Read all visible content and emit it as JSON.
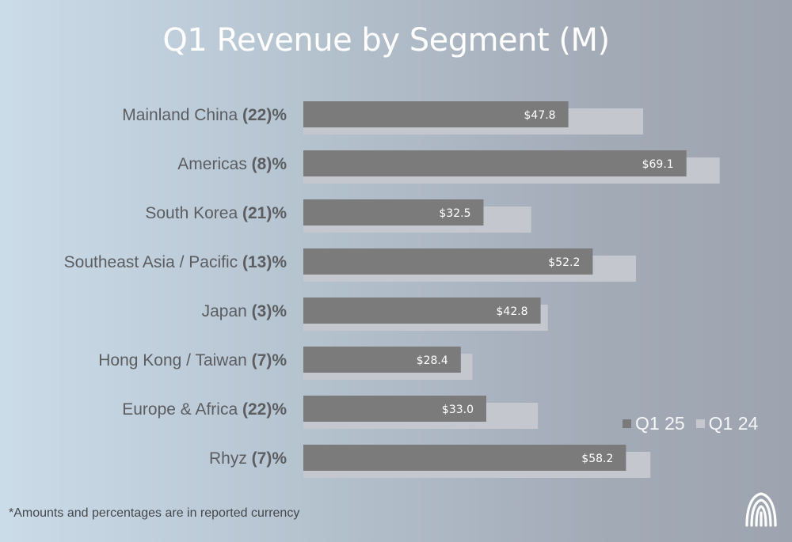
{
  "chart_data": {
    "type": "bar",
    "orientation": "horizontal",
    "title": "Q1 Revenue by Segment (M)",
    "categories": [
      {
        "name": "Mainland China",
        "change": "(22)%"
      },
      {
        "name": "Americas",
        "change": "(8)%"
      },
      {
        "name": "South Korea",
        "change": "(21)%"
      },
      {
        "name": "Southeast Asia / Pacific ",
        "change": "(13)%"
      },
      {
        "name": "Japan",
        "change": "(3)%"
      },
      {
        "name": "Hong Kong / Taiwan",
        "change": "(7)%"
      },
      {
        "name": "Europe & Africa",
        "change": "(22)%"
      },
      {
        "name": "Rhyz",
        "change": "(7)%"
      }
    ],
    "series": [
      {
        "name": "Q1 25",
        "color": "#7b7b7b",
        "values": [
          47.8,
          69.1,
          32.5,
          52.2,
          42.8,
          28.4,
          33.0,
          58.2
        ],
        "labels": [
          "$47.8",
          "$69.1",
          "$32.5",
          "$52.2",
          "$42.8",
          "$28.4",
          "$33.0",
          "$58.2"
        ]
      },
      {
        "name": "Q1 24",
        "color": "#c4c8ce",
        "values": [
          61.3,
          75.1,
          41.1,
          60.0,
          44.1,
          30.5,
          42.3,
          62.6
        ]
      }
    ],
    "xlim": [
      0,
      80
    ],
    "grid": false,
    "legend_position": "bottom-right"
  },
  "footnote": "*Amounts and percentages are in reported currency",
  "logo_icon": "company-logo-icon"
}
